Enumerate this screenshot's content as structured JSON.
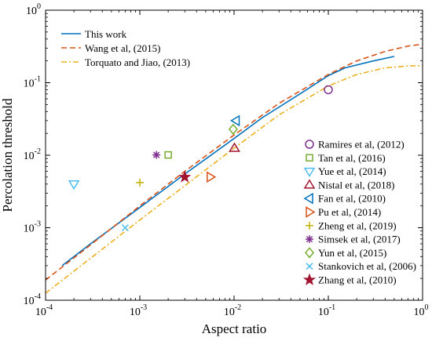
{
  "chart_data": {
    "type": "line",
    "title": "",
    "xlabel": "Aspect ratio",
    "ylabel": "Percolation threshold",
    "xscale": "log",
    "yscale": "log",
    "xlim": [
      0.0001,
      1
    ],
    "ylim": [
      0.0001,
      1
    ],
    "x_ticks": [
      {
        "value": 0.0001,
        "base": "10",
        "exp": "-4"
      },
      {
        "value": 0.001,
        "base": "10",
        "exp": "-3"
      },
      {
        "value": 0.01,
        "base": "10",
        "exp": "-2"
      },
      {
        "value": 0.1,
        "base": "10",
        "exp": "-1"
      },
      {
        "value": 1,
        "base": "10",
        "exp": "0"
      }
    ],
    "y_ticks": [
      {
        "value": 0.0001,
        "base": "10",
        "exp": "-4"
      },
      {
        "value": 0.001,
        "base": "10",
        "exp": "-3"
      },
      {
        "value": 0.01,
        "base": "10",
        "exp": "-2"
      },
      {
        "value": 0.1,
        "base": "10",
        "exp": "-1"
      },
      {
        "value": 1,
        "base": "10",
        "exp": "0"
      }
    ],
    "grid": false,
    "line_legend_position": "top-left",
    "marker_legend_position": "right",
    "series": [
      {
        "name": "This work",
        "color": "#0072BD",
        "style": "solid",
        "x": [
          0.00015,
          0.0003,
          0.001,
          0.003,
          0.01,
          0.02,
          0.05,
          0.1,
          0.15,
          0.3,
          0.5
        ],
        "y": [
          0.0003,
          0.0006,
          0.0019,
          0.0055,
          0.017,
          0.033,
          0.07,
          0.125,
          0.16,
          0.2,
          0.23
        ]
      },
      {
        "name": "Wang et al, (2015)",
        "color": "#D95319",
        "style": "dashed",
        "x": [
          0.0001,
          0.0003,
          0.001,
          0.003,
          0.01,
          0.03,
          0.1,
          0.2,
          0.4,
          0.7,
          1.0
        ],
        "y": [
          0.00019,
          0.00058,
          0.002,
          0.006,
          0.019,
          0.052,
          0.13,
          0.2,
          0.27,
          0.32,
          0.34
        ]
      },
      {
        "name": "Torquato and Jiao, (2013)",
        "color": "#EDB120",
        "style": "dashdot",
        "x": [
          0.0001,
          0.0003,
          0.001,
          0.003,
          0.01,
          0.03,
          0.1,
          0.2,
          0.4,
          0.7,
          1.0
        ],
        "y": [
          0.000125,
          0.00038,
          0.00128,
          0.0038,
          0.0125,
          0.036,
          0.09,
          0.13,
          0.16,
          0.17,
          0.172
        ]
      }
    ],
    "points": [
      {
        "name": "Ramires et al, (2012)",
        "marker": "circle",
        "color": "#7E2F8E",
        "x": 0.1,
        "y": 0.08
      },
      {
        "name": "Tan et al, (2016)",
        "marker": "square",
        "color": "#77AC30",
        "x": 0.002,
        "y": 0.0101
      },
      {
        "name": "Yue et al, (2014)",
        "marker": "triangle-down",
        "color": "#4DBEEE",
        "x": 0.0002,
        "y": 0.004
      },
      {
        "name": "Nistal et al, (2018)",
        "marker": "triangle-up",
        "color": "#A2142F",
        "x": 0.0101,
        "y": 0.0125
      },
      {
        "name": "Fan et al, (2010)",
        "marker": "triangle-left",
        "color": "#0072BD",
        "x": 0.0105,
        "y": 0.03
      },
      {
        "name": "Pu et al, (2014)",
        "marker": "triangle-right",
        "color": "#D95319",
        "x": 0.0056,
        "y": 0.005
      },
      {
        "name": "Zheng et al, (2019)",
        "marker": "plus",
        "color": "#C0B000",
        "x": 0.001,
        "y": 0.0042
      },
      {
        "name": "Simsek et al, (2017)",
        "marker": "asterisk",
        "color": "#7E2F8E",
        "x": 0.0015,
        "y": 0.0101
      },
      {
        "name": "Yun et al, (2015)",
        "marker": "diamond",
        "color": "#77AC30",
        "x": 0.0098,
        "y": 0.0228
      },
      {
        "name": "Stankovich et al, (2006)",
        "marker": "x",
        "color": "#4DBEEE",
        "x": 0.0007,
        "y": 0.001
      },
      {
        "name": "Zhang et al, (2010)",
        "marker": "star",
        "color": "#A2142F",
        "x": 0.003,
        "y": 0.005
      }
    ]
  }
}
